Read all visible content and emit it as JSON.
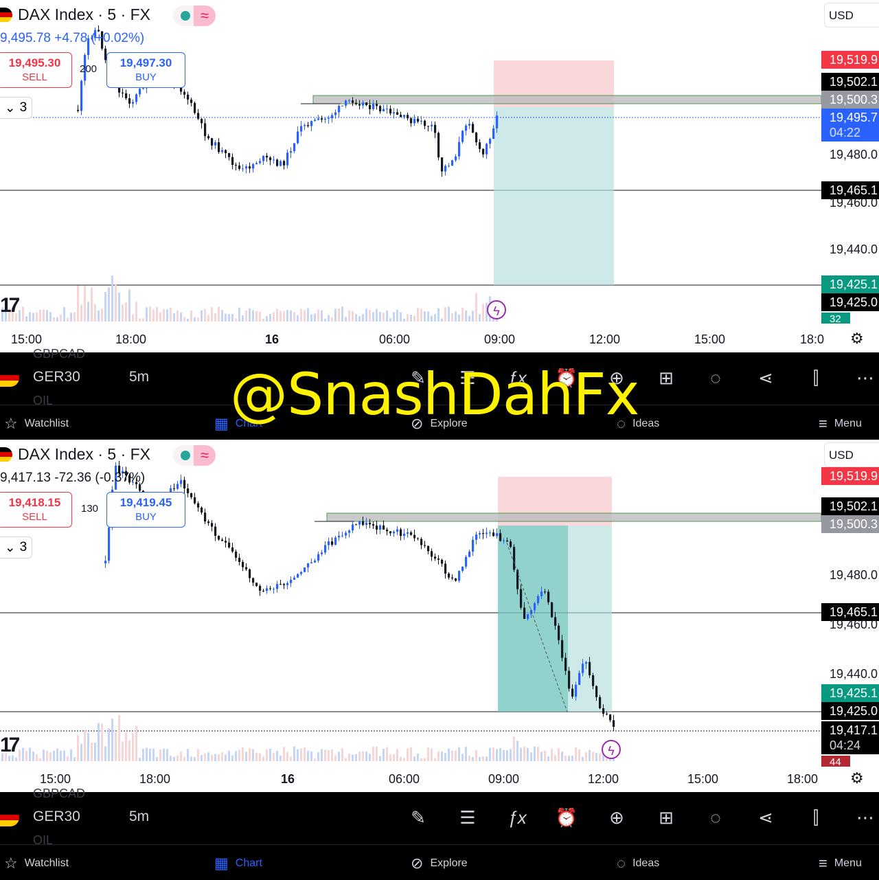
{
  "colors": {
    "up": "#2962ff",
    "down": "#131722",
    "sell": "#f23645",
    "buy": "#2962ff",
    "tp": "#b2dfdb",
    "sl": "#f8bbd0",
    "zone": "#c8c8c8"
  },
  "panels": [
    {
      "title": "DAX Index · 5 · FX",
      "quote": "9,495.78  +4.78 (+0.02%)",
      "quote_color": "#2962ff",
      "sell": {
        "price": "19,495.30",
        "label": "SELL"
      },
      "buy": {
        "price": "19,497.30",
        "label": "BUY"
      },
      "spread": "200",
      "indicators": "3",
      "currency": "USD",
      "price_labels": [
        {
          "text": "19,519.9",
          "kind": "red"
        },
        {
          "text": "19,502.1",
          "kind": "black"
        },
        {
          "text": "19,500.3",
          "kind": "grey"
        },
        {
          "text": "19,495.7",
          "kind": "blue"
        },
        {
          "text": "04:22",
          "kind": "blue-sub"
        },
        {
          "text": "19,480.0",
          "kind": "plain"
        },
        {
          "text": "19,465.1",
          "kind": "black"
        },
        {
          "text": "19,460.0",
          "kind": "plain"
        },
        {
          "text": "19,440.0",
          "kind": "plain"
        },
        {
          "text": "19,425.1",
          "kind": "green"
        },
        {
          "text": "19,425.0",
          "kind": "black"
        },
        {
          "text": "32",
          "kind": "green-small"
        }
      ],
      "time_labels": [
        "15:00",
        "18:00",
        "16",
        "06:00",
        "09:00",
        "12:00",
        "15:00",
        "18:0"
      ]
    },
    {
      "title": "DAX Index · 5 · FX",
      "quote": "9,417.13  -72.36 (-0.37%)",
      "quote_color": "#131722",
      "sell": {
        "price": "19,418.15",
        "label": "SELL"
      },
      "buy": {
        "price": "19,419.45",
        "label": "BUY"
      },
      "spread": "130",
      "indicators": "3",
      "currency": "USD",
      "price_labels": [
        {
          "text": "19,519.9",
          "kind": "red"
        },
        {
          "text": "19,502.1",
          "kind": "black"
        },
        {
          "text": "19,500.3",
          "kind": "grey"
        },
        {
          "text": "19,480.0",
          "kind": "plain"
        },
        {
          "text": "19,465.1",
          "kind": "black"
        },
        {
          "text": "19,460.0",
          "kind": "plain"
        },
        {
          "text": "19,440.0",
          "kind": "plain"
        },
        {
          "text": "19,425.1",
          "kind": "green"
        },
        {
          "text": "19,425.0",
          "kind": "black"
        },
        {
          "text": "19,417.1",
          "kind": "black"
        },
        {
          "text": "04:24",
          "kind": "black-sub"
        },
        {
          "text": "44",
          "kind": "red-small"
        }
      ],
      "time_labels": [
        "15:00",
        "18:00",
        "16",
        "06:00",
        "09:00",
        "12:00",
        "15:00",
        "18:00"
      ]
    }
  ],
  "toolbar": {
    "symbol": "GER30",
    "timeframe": "5m",
    "ghost_above": "GBPCAD",
    "ghost_below": "OIL",
    "icons": [
      "pencil-icon",
      "notes-icon",
      "fx-icon",
      "alarm-icon",
      "plus-circle-icon",
      "grid-icon",
      "bulb-icon",
      "share-icon",
      "candles-icon",
      "more-icon"
    ]
  },
  "nav": {
    "watchlist": "Watchlist",
    "chart": "Chart",
    "explore": "Explore",
    "ideas": "Ideas",
    "menu": "Menu"
  },
  "watermark": "@SnashDahFx"
}
